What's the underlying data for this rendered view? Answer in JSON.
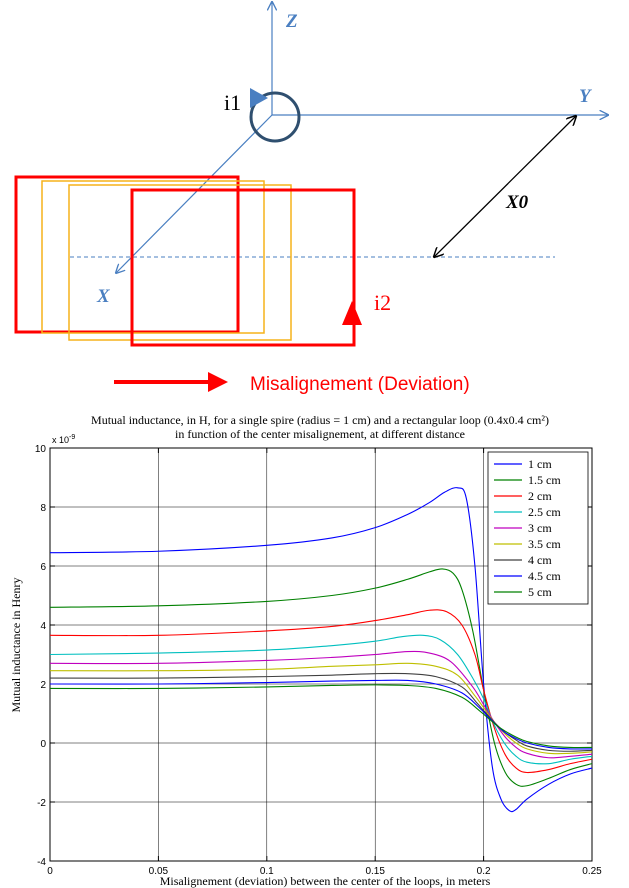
{
  "diagram": {
    "axis_z": "Z",
    "axis_y": "Y",
    "axis_x": "X",
    "label_x0": "X0",
    "label_i1": "i1",
    "label_i2": "i2",
    "misalignment_label": "Misalignement (Deviation)",
    "colors": {
      "axis": "#4a7fc1",
      "loop": "#ff0000",
      "loop_ghost": "#f5b21a",
      "spire": "#2f4f6f",
      "dashed": "#4a7fc1"
    }
  },
  "chart_data": {
    "type": "line",
    "title": "Mutual inductance, in H, for a single spire (radius = 1 cm) and a rectangular loop (0.4x0.4 cm²)",
    "subtitle": "in function of the center misalignement, at different distance",
    "xlabel": "Misalignement (deviation) between the center of the loops, in meters",
    "ylabel": "Mutual inductance in Henry",
    "y_exponent": "x 10",
    "y_exponent_power": "-9",
    "xlim": [
      0,
      0.25
    ],
    "ylim": [
      -4,
      10
    ],
    "xticks": [
      "0",
      "0.05",
      "0.1",
      "0.15",
      "0.2",
      "0.25"
    ],
    "yticks": [
      "-4",
      "-2",
      "0",
      "2",
      "4",
      "6",
      "8",
      "10"
    ],
    "grid": true,
    "legend_position": "top-right",
    "series": [
      {
        "name": "1 cm",
        "color": "#0000ff",
        "x": [
          0,
          0.05,
          0.1,
          0.13,
          0.15,
          0.165,
          0.175,
          0.182,
          0.188,
          0.192,
          0.196,
          0.2,
          0.204,
          0.208,
          0.212,
          0.215,
          0.22,
          0.23,
          0.24,
          0.25
        ],
        "y": [
          6.45,
          6.5,
          6.7,
          6.95,
          7.3,
          7.75,
          8.15,
          8.5,
          8.65,
          8.3,
          6.0,
          2.0,
          -0.8,
          -1.9,
          -2.3,
          -2.25,
          -1.9,
          -1.4,
          -1.05,
          -0.85
        ]
      },
      {
        "name": "1.5 cm",
        "color": "#008000",
        "x": [
          0,
          0.05,
          0.1,
          0.13,
          0.15,
          0.165,
          0.175,
          0.181,
          0.186,
          0.19,
          0.195,
          0.2,
          0.205,
          0.21,
          0.215,
          0.22,
          0.23,
          0.24,
          0.25
        ],
        "y": [
          4.6,
          4.65,
          4.8,
          5.0,
          5.25,
          5.55,
          5.8,
          5.9,
          5.75,
          5.2,
          3.8,
          1.8,
          0.0,
          -1.0,
          -1.4,
          -1.45,
          -1.2,
          -0.9,
          -0.7
        ]
      },
      {
        "name": "2 cm",
        "color": "#ff0000",
        "x": [
          0,
          0.05,
          0.1,
          0.13,
          0.15,
          0.165,
          0.175,
          0.183,
          0.19,
          0.196,
          0.2,
          0.205,
          0.21,
          0.215,
          0.22,
          0.23,
          0.24,
          0.25
        ],
        "y": [
          3.65,
          3.65,
          3.8,
          3.95,
          4.15,
          4.35,
          4.5,
          4.45,
          4.0,
          3.0,
          1.8,
          0.5,
          -0.4,
          -0.85,
          -1.0,
          -0.9,
          -0.7,
          -0.55
        ]
      },
      {
        "name": "2.5 cm",
        "color": "#00bfbf",
        "x": [
          0,
          0.05,
          0.1,
          0.13,
          0.15,
          0.162,
          0.172,
          0.18,
          0.188,
          0.195,
          0.2,
          0.205,
          0.21,
          0.215,
          0.22,
          0.23,
          0.24,
          0.25
        ],
        "y": [
          3.0,
          3.05,
          3.15,
          3.3,
          3.45,
          3.6,
          3.65,
          3.5,
          3.0,
          2.2,
          1.5,
          0.6,
          -0.05,
          -0.45,
          -0.65,
          -0.7,
          -0.55,
          -0.45
        ]
      },
      {
        "name": "3 cm",
        "color": "#bf00bf",
        "x": [
          0,
          0.05,
          0.1,
          0.13,
          0.15,
          0.165,
          0.175,
          0.185,
          0.195,
          0.2,
          0.205,
          0.21,
          0.215,
          0.22,
          0.23,
          0.24,
          0.25
        ],
        "y": [
          2.7,
          2.7,
          2.8,
          2.9,
          3.0,
          3.1,
          3.05,
          2.75,
          1.9,
          1.3,
          0.7,
          0.2,
          -0.15,
          -0.35,
          -0.5,
          -0.45,
          -0.38
        ]
      },
      {
        "name": "3.5 cm",
        "color": "#bfbf00",
        "x": [
          0,
          0.05,
          0.1,
          0.13,
          0.15,
          0.165,
          0.178,
          0.188,
          0.196,
          0.2,
          0.205,
          0.21,
          0.215,
          0.22,
          0.23,
          0.24,
          0.25
        ],
        "y": [
          2.45,
          2.45,
          2.5,
          2.6,
          2.65,
          2.7,
          2.6,
          2.3,
          1.6,
          1.2,
          0.7,
          0.3,
          0.0,
          -0.2,
          -0.35,
          -0.35,
          -0.3
        ]
      },
      {
        "name": "4 cm",
        "color": "#404040",
        "x": [
          0,
          0.05,
          0.1,
          0.13,
          0.15,
          0.165,
          0.178,
          0.19,
          0.197,
          0.2,
          0.205,
          0.21,
          0.215,
          0.22,
          0.23,
          0.24,
          0.25
        ],
        "y": [
          2.2,
          2.2,
          2.25,
          2.3,
          2.35,
          2.35,
          2.25,
          1.9,
          1.35,
          1.1,
          0.7,
          0.35,
          0.1,
          -0.1,
          -0.25,
          -0.28,
          -0.25
        ]
      },
      {
        "name": "4.5 cm",
        "color": "#0000ff",
        "x": [
          0,
          0.05,
          0.1,
          0.13,
          0.15,
          0.165,
          0.178,
          0.19,
          0.198,
          0.202,
          0.206,
          0.21,
          0.215,
          0.22,
          0.23,
          0.24,
          0.25
        ],
        "y": [
          2.0,
          2.0,
          2.05,
          2.1,
          2.12,
          2.12,
          2.0,
          1.7,
          1.2,
          0.9,
          0.6,
          0.35,
          0.15,
          0.0,
          -0.15,
          -0.2,
          -0.2
        ]
      },
      {
        "name": "5 cm",
        "color": "#008000",
        "x": [
          0,
          0.05,
          0.1,
          0.13,
          0.15,
          0.165,
          0.178,
          0.19,
          0.198,
          0.202,
          0.206,
          0.21,
          0.215,
          0.22,
          0.23,
          0.24,
          0.25
        ],
        "y": [
          1.85,
          1.85,
          1.9,
          1.95,
          1.97,
          1.95,
          1.85,
          1.55,
          1.1,
          0.85,
          0.6,
          0.4,
          0.2,
          0.05,
          -0.1,
          -0.15,
          -0.15
        ]
      }
    ]
  }
}
